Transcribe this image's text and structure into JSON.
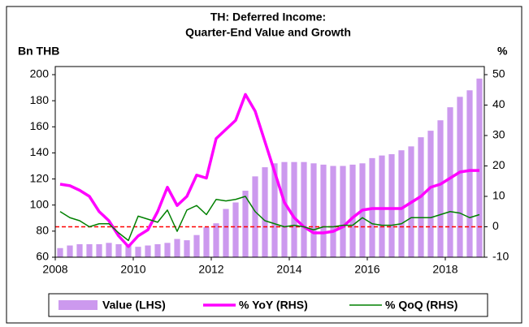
{
  "chart_data": {
    "type": "bar-line",
    "title": "TH: Deferred Income:",
    "subtitle": "Quarter-End Value and Growth",
    "y_label": "Bn THB",
    "y2_label": "%",
    "x": [
      2008.125,
      2008.375,
      2008.625,
      2008.875,
      2009.125,
      2009.375,
      2009.625,
      2009.875,
      2010.125,
      2010.375,
      2010.625,
      2010.875,
      2011.125,
      2011.375,
      2011.625,
      2011.875,
      2012.125,
      2012.375,
      2012.625,
      2012.875,
      2013.125,
      2013.375,
      2013.625,
      2013.875,
      2014.125,
      2014.375,
      2014.625,
      2014.875,
      2015.125,
      2015.375,
      2015.625,
      2015.875,
      2016.125,
      2016.375,
      2016.625,
      2016.875,
      2017.125,
      2017.375,
      2017.625,
      2017.875,
      2018.125,
      2018.375,
      2018.625,
      2018.875
    ],
    "xlim": [
      2008,
      2019
    ],
    "xticks": [
      2008,
      2010,
      2012,
      2014,
      2016,
      2018
    ],
    "ylim": [
      60,
      200
    ],
    "yticks": [
      60,
      80,
      100,
      120,
      140,
      160,
      180,
      200
    ],
    "y2lim": [
      -10,
      50
    ],
    "y2ticks": [
      -10,
      0,
      10,
      20,
      30,
      40,
      50
    ],
    "reference_line": {
      "value": 0,
      "axis": "y2",
      "color": "#ff0000"
    },
    "legend": "bottom",
    "series": [
      {
        "name": "Value (LHS)",
        "type": "bar",
        "axis": "y",
        "color": "#cc99ee",
        "values": [
          67,
          69,
          70,
          70,
          70,
          71,
          70,
          69,
          68,
          69,
          70,
          71,
          74,
          73,
          77,
          83,
          86,
          97,
          102,
          111,
          122,
          129,
          132,
          133,
          133,
          133,
          132,
          131,
          130,
          130,
          131,
          132,
          136,
          138,
          139,
          142,
          145,
          152,
          157,
          165,
          175,
          183,
          188,
          197
        ]
      },
      {
        "name": "% YoY (RHS)",
        "type": "line",
        "axis": "y2",
        "color": "#ff00ff",
        "values": [
          14,
          13.5,
          12,
          10,
          5,
          2,
          -3,
          -6.5,
          -3,
          -1,
          5,
          13,
          7,
          10,
          17,
          16,
          29,
          32,
          35,
          43.5,
          38,
          28,
          18,
          8,
          3,
          0,
          -2,
          -2,
          -1.5,
          0,
          3,
          5.5,
          6,
          6,
          6,
          6,
          8,
          10,
          13,
          14,
          16,
          18,
          18.5,
          18.5
        ]
      },
      {
        "name": "% QoQ (RHS)",
        "type": "line",
        "axis": "y2",
        "color": "#008000",
        "values": [
          5,
          3,
          2,
          0,
          1,
          1,
          -2,
          -4.5,
          3.5,
          2.5,
          1.5,
          5.5,
          -1.5,
          5.5,
          7,
          4,
          9,
          8.5,
          9,
          10,
          5,
          2,
          1,
          0,
          0.5,
          0,
          -1,
          0,
          0,
          0.5,
          0.5,
          3,
          1,
          0.5,
          0.5,
          1,
          3,
          3,
          3,
          4,
          5,
          4.5,
          3,
          4
        ]
      }
    ]
  }
}
